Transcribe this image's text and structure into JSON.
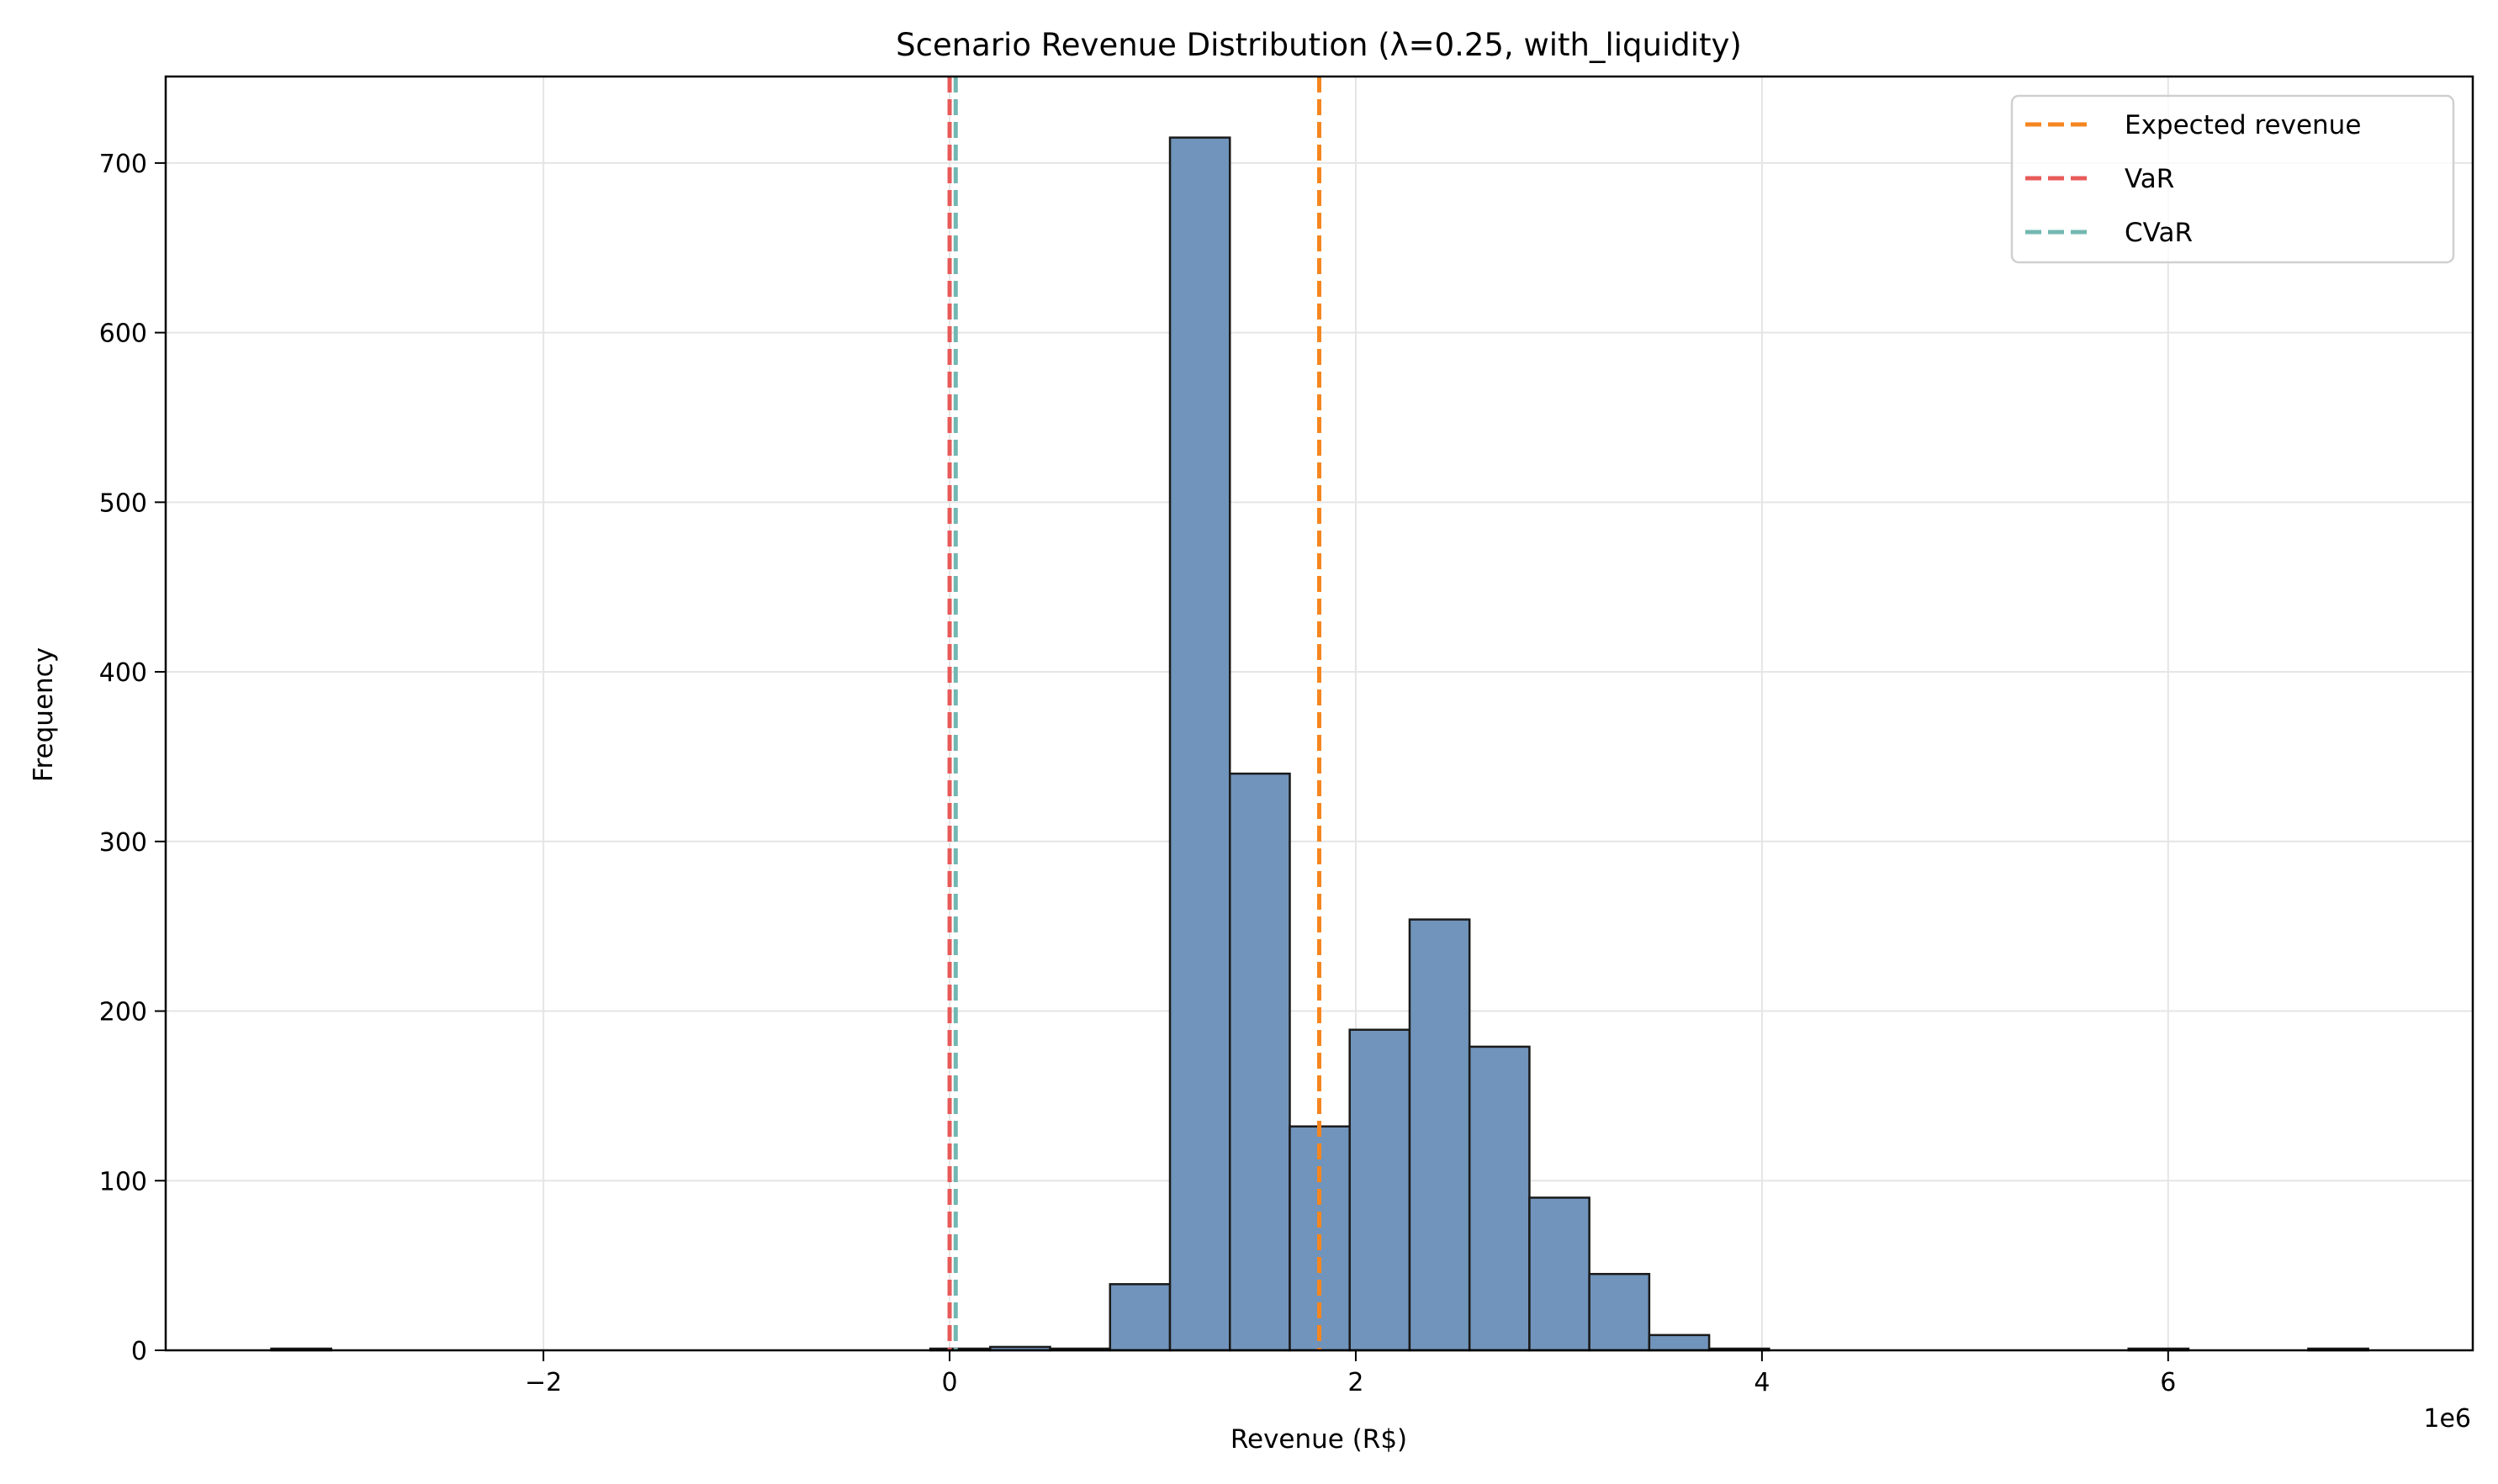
{
  "chart_data": {
    "type": "bar",
    "subtype": "histogram",
    "title": "Scenario Revenue Distribution (λ=0.25, with_liquidity)",
    "xlabel": "Revenue (R$)",
    "ylabel": "Frequency",
    "x_offset_label": "1e6",
    "xlim": [
      -3860000.0,
      7500000.0
    ],
    "ylim": [
      0,
      751
    ],
    "grid": true,
    "legend_position": "top-right",
    "xticks": [
      -2000000.0,
      0,
      2000000.0,
      4000000.0,
      6000000.0
    ],
    "xtick_labels": [
      "−2",
      "0",
      "2",
      "4",
      "6"
    ],
    "yticks": [
      0,
      100,
      200,
      300,
      400,
      500,
      600,
      700
    ],
    "ytick_labels": [
      "0",
      "100",
      "200",
      "300",
      "400",
      "500",
      "600",
      "700"
    ],
    "bin_start": -3340000.0,
    "bin_width": 295000.0,
    "counts": [
      1,
      0,
      0,
      0,
      0,
      0,
      0,
      0,
      0,
      0,
      0,
      1,
      2,
      1,
      39,
      715,
      340,
      132,
      189,
      254,
      179,
      90,
      45,
      9,
      1,
      0,
      0,
      0,
      0,
      0,
      0,
      1,
      0,
      0,
      1
    ],
    "bar_color": "#7094bb",
    "bar_edge_color": "#1a1a1a",
    "reference_lines": [
      {
        "name": "Expected revenue",
        "x": 1820000.0,
        "color": "#f5861f",
        "style": "dashed"
      },
      {
        "name": "VaR",
        "x": 0.0,
        "color": "#e85a5a",
        "style": "dashed"
      },
      {
        "name": "CVaR",
        "x": 30000.0,
        "color": "#72b7b2",
        "style": "dashed"
      }
    ]
  }
}
